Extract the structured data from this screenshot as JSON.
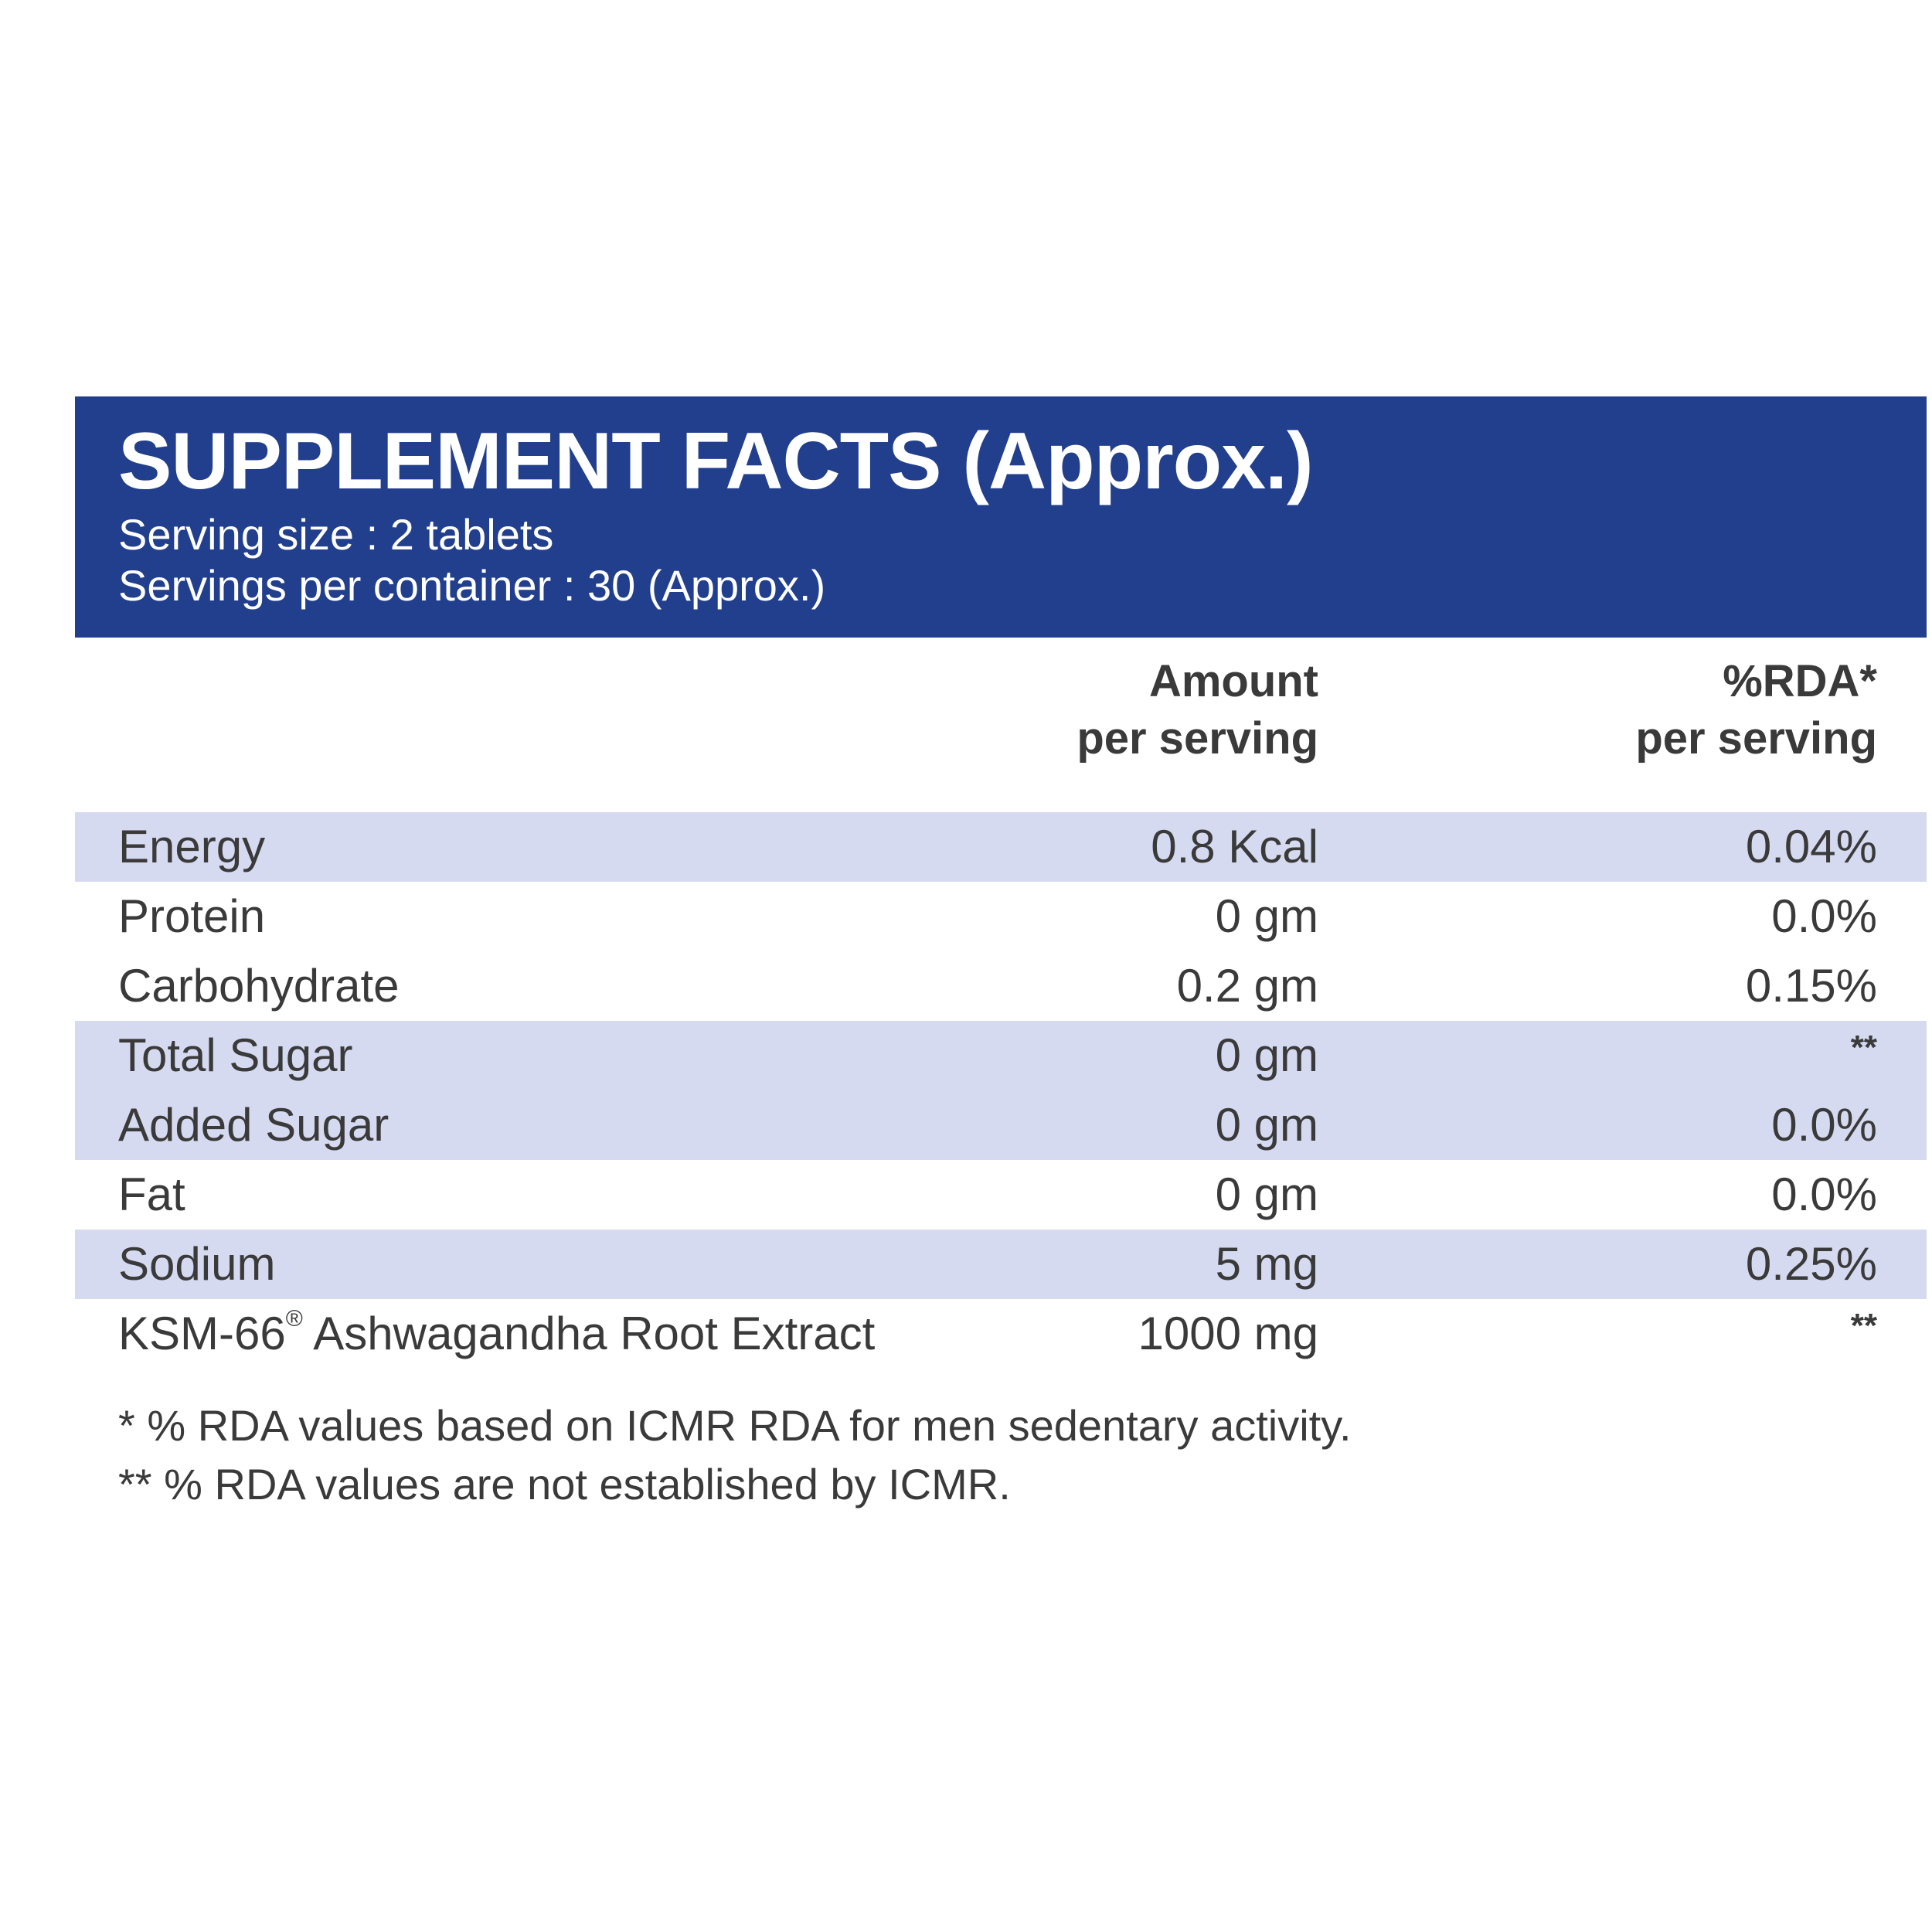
{
  "header": {
    "title": "SUPPLEMENT FACTS (Approx.)",
    "serving_size": "Serving size : 2 tablets",
    "servings_per_container": "Servings per container : 30 (Approx.)"
  },
  "columns": {
    "amount_line1": "Amount",
    "amount_line2": "per serving",
    "rda_line1": "%RDA*",
    "rda_line2": "per serving"
  },
  "rows": [
    {
      "name": "Energy",
      "amount": "0.8 Kcal",
      "rda": "0.04%",
      "shaded": true
    },
    {
      "name": "Protein",
      "amount": "0 gm",
      "rda": "0.0%",
      "shaded": false
    },
    {
      "name": "Carbohydrate",
      "amount": "0.2 gm",
      "rda": "0.15%",
      "shaded": false
    },
    {
      "name": "Total Sugar",
      "amount": "0 gm",
      "rda": "**",
      "shaded": true
    },
    {
      "name": "Added Sugar",
      "amount": "0 gm",
      "rda": "0.0%",
      "shaded": true
    },
    {
      "name": "Fat",
      "amount": "0 gm",
      "rda": "0.0%",
      "shaded": false
    },
    {
      "name": "Sodium",
      "amount": "5 mg",
      "rda": "0.25%",
      "shaded": true
    },
    {
      "name": "KSM-66",
      "name_mark": "®",
      "name_suffix": " Ashwagandha Root Extract",
      "amount": "1000 mg",
      "rda": "**",
      "shaded": false
    }
  ],
  "footnotes": [
    "* % RDA values based on ICMR RDA for men sedentary activity.",
    "** % RDA values are not established by ICMR."
  ],
  "colors": {
    "header_bg": "#213f8c",
    "row_shade": "#d6daf0",
    "text": "#3a3a3a"
  }
}
